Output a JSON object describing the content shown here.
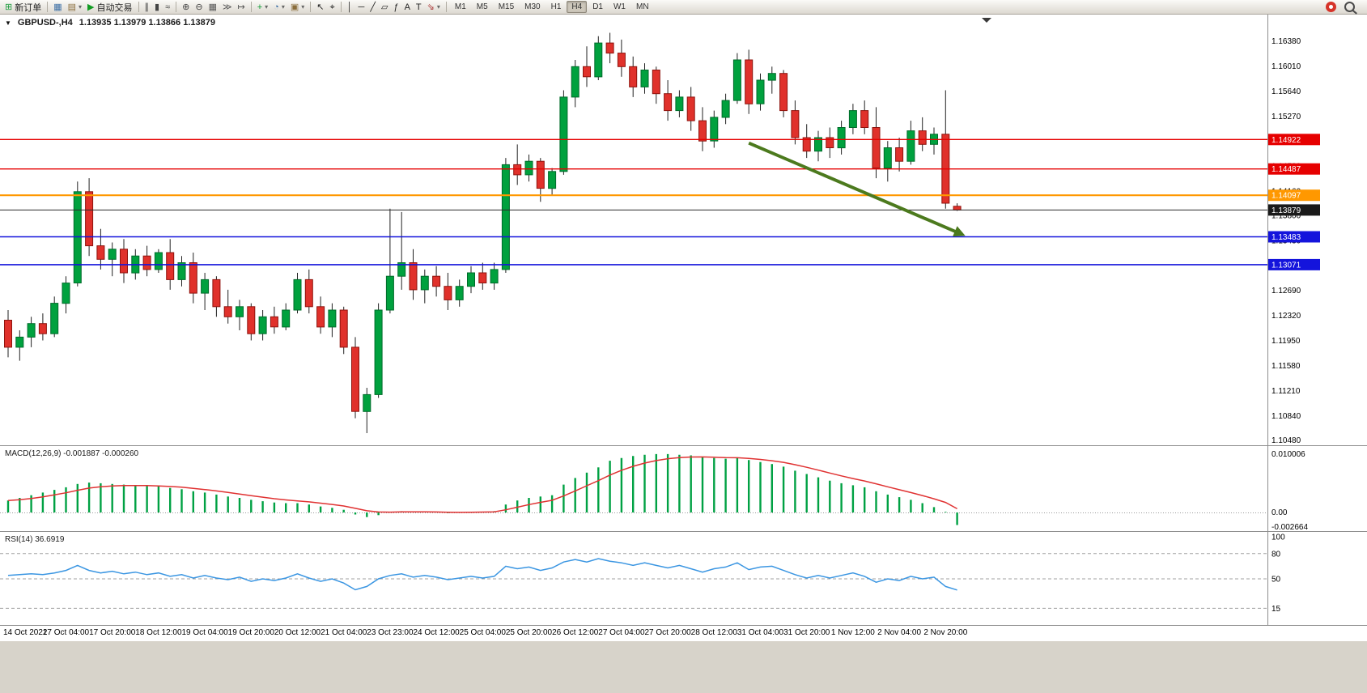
{
  "toolbar": {
    "active_timeframe": "H4",
    "items": [
      {
        "type": "button",
        "name": "new-order-button",
        "glyph": "⊞",
        "color": "#1f9d40",
        "label": "新订单"
      },
      {
        "type": "sep"
      },
      {
        "type": "button",
        "name": "chart-windows-button",
        "glyph": "▦",
        "color": "#3a6ea5"
      },
      {
        "type": "button",
        "name": "profiles-button",
        "glyph": "▤",
        "color": "#8a6d3b",
        "dropdown": true
      },
      {
        "type": "button",
        "name": "auto-trading-button",
        "glyph": "▶",
        "color": "#119c22",
        "label": "自动交易"
      },
      {
        "type": "sep"
      },
      {
        "type": "button",
        "name": "bars-chart-button",
        "glyph": "∥",
        "color": "#444"
      },
      {
        "type": "button",
        "name": "candles-chart-button",
        "glyph": "▮",
        "color": "#444"
      },
      {
        "type": "button",
        "name": "line-chart-button",
        "glyph": "≈",
        "color": "#444"
      },
      {
        "type": "sep"
      },
      {
        "type": "button",
        "name": "zoom-in-button",
        "glyph": "⊕",
        "color": "#444"
      },
      {
        "type": "button",
        "name": "zoom-out-button",
        "glyph": "⊖",
        "color": "#444"
      },
      {
        "type": "button",
        "name": "tile-windows-button",
        "glyph": "▦",
        "color": "#555"
      },
      {
        "type": "button",
        "name": "auto-scroll-button",
        "glyph": "≫",
        "color": "#555"
      },
      {
        "type": "button",
        "name": "chart-shift-button",
        "glyph": "↦",
        "color": "#555"
      },
      {
        "type": "sep"
      },
      {
        "type": "button",
        "name": "indicators-button",
        "glyph": "+",
        "color": "#0a9a30",
        "dropdown": true
      },
      {
        "type": "button",
        "name": "periods-button",
        "glyph": "◔",
        "color": "#3a6ea5",
        "dropdown": true
      },
      {
        "type": "button",
        "name": "templates-button",
        "glyph": "▣",
        "color": "#8a6d3b",
        "dropdown": true
      },
      {
        "type": "sep"
      },
      {
        "type": "button",
        "name": "cursor-button",
        "glyph": "↖",
        "color": "#222"
      },
      {
        "type": "button",
        "name": "crosshair-button",
        "glyph": "⌖",
        "color": "#222"
      },
      {
        "type": "sep"
      },
      {
        "type": "button",
        "name": "vertical-line-button",
        "glyph": "│",
        "color": "#222"
      },
      {
        "type": "button",
        "name": "horizontal-line-button",
        "glyph": "─",
        "color": "#222"
      },
      {
        "type": "button",
        "name": "trendline-button",
        "glyph": "╱",
        "color": "#222"
      },
      {
        "type": "button",
        "name": "equidistant-channel-button",
        "glyph": "▱",
        "color": "#222"
      },
      {
        "type": "button",
        "name": "fibonacci-button",
        "glyph": "ƒ",
        "color": "#222"
      },
      {
        "type": "button",
        "name": "text-button",
        "glyph": "A",
        "color": "#222"
      },
      {
        "type": "button",
        "name": "text-label-button",
        "glyph": "T",
        "color": "#222"
      },
      {
        "type": "button",
        "name": "arrows-button",
        "glyph": "⇘",
        "color": "#a33",
        "dropdown": true
      },
      {
        "type": "sep"
      },
      {
        "type": "tf",
        "label": "M1"
      },
      {
        "type": "tf",
        "label": "M5"
      },
      {
        "type": "tf",
        "label": "M15"
      },
      {
        "type": "tf",
        "label": "M30"
      },
      {
        "type": "tf",
        "label": "H1"
      },
      {
        "type": "tf",
        "label": "H4"
      },
      {
        "type": "tf",
        "label": "D1"
      },
      {
        "type": "tf",
        "label": "W1"
      },
      {
        "type": "tf",
        "label": "MN"
      }
    ],
    "right_items": [
      {
        "name": "community-icon"
      },
      {
        "name": "search-icon"
      }
    ]
  },
  "chart": {
    "title": "GBPUSD-,H4",
    "ohlc": "1.13935 1.13979 1.13866 1.13879",
    "macd_text": "MACD(12,26,9) -0.001887 -0.000260",
    "rsi_text": "RSI(14) 36.6919"
  },
  "chart_data": {
    "type": "candlestick",
    "symbol": "GBPUSD-",
    "period": "H4",
    "last_ohlc": {
      "open": 1.13935,
      "high": 1.13979,
      "low": 1.13866,
      "close": 1.13879
    },
    "colors": {
      "bull": "#00a13e",
      "bull_border": "#006b2a",
      "bear": "#e0312b",
      "bear_border": "#8e130d"
    },
    "price_axis": {
      "min": 1.104,
      "max": 1.1677,
      "labels": [
        1.1638,
        1.1601,
        1.1564,
        1.1527,
        1.149,
        1.1453,
        1.1416,
        1.138,
        1.1343,
        1.1306,
        1.1269,
        1.1232,
        1.1195,
        1.1158,
        1.1121,
        1.1084,
        1.1048
      ]
    },
    "candles": [
      [
        1.1225,
        1.124,
        1.117,
        1.1185
      ],
      [
        1.1185,
        1.121,
        1.1165,
        1.12
      ],
      [
        1.12,
        1.123,
        1.1185,
        1.122
      ],
      [
        1.122,
        1.1235,
        1.1195,
        1.1205
      ],
      [
        1.1205,
        1.126,
        1.12,
        1.125
      ],
      [
        1.125,
        1.129,
        1.1235,
        1.128
      ],
      [
        1.128,
        1.143,
        1.1275,
        1.1415
      ],
      [
        1.1415,
        1.1435,
        1.132,
        1.1335
      ],
      [
        1.1335,
        1.136,
        1.13,
        1.1315
      ],
      [
        1.1315,
        1.134,
        1.129,
        1.133
      ],
      [
        1.133,
        1.1345,
        1.128,
        1.1295
      ],
      [
        1.1295,
        1.133,
        1.1285,
        1.132
      ],
      [
        1.132,
        1.1335,
        1.129,
        1.13
      ],
      [
        1.13,
        1.133,
        1.1295,
        1.1325
      ],
      [
        1.1325,
        1.1345,
        1.127,
        1.1285
      ],
      [
        1.1285,
        1.132,
        1.1275,
        1.131
      ],
      [
        1.131,
        1.1325,
        1.125,
        1.1265
      ],
      [
        1.1265,
        1.1295,
        1.124,
        1.1285
      ],
      [
        1.1285,
        1.129,
        1.123,
        1.1245
      ],
      [
        1.1245,
        1.127,
        1.122,
        1.123
      ],
      [
        1.123,
        1.1255,
        1.121,
        1.1245
      ],
      [
        1.1245,
        1.125,
        1.1195,
        1.1205
      ],
      [
        1.1205,
        1.124,
        1.1195,
        1.123
      ],
      [
        1.123,
        1.1245,
        1.1205,
        1.1215
      ],
      [
        1.1215,
        1.125,
        1.121,
        1.124
      ],
      [
        1.124,
        1.1295,
        1.1235,
        1.1285
      ],
      [
        1.1285,
        1.13,
        1.1235,
        1.1245
      ],
      [
        1.1245,
        1.126,
        1.1205,
        1.1215
      ],
      [
        1.1215,
        1.125,
        1.12,
        1.124
      ],
      [
        1.124,
        1.1245,
        1.1175,
        1.1185
      ],
      [
        1.1185,
        1.12,
        1.108,
        1.109
      ],
      [
        1.109,
        1.1125,
        1.1058,
        1.1115
      ],
      [
        1.1115,
        1.125,
        1.111,
        1.124
      ],
      [
        1.124,
        1.139,
        1.1235,
        1.129
      ],
      [
        1.129,
        1.1385,
        1.127,
        1.131
      ],
      [
        1.131,
        1.133,
        1.1255,
        1.127
      ],
      [
        1.127,
        1.13,
        1.125,
        1.129
      ],
      [
        1.129,
        1.1305,
        1.126,
        1.1275
      ],
      [
        1.1275,
        1.1295,
        1.124,
        1.1255
      ],
      [
        1.1255,
        1.1285,
        1.1245,
        1.1275
      ],
      [
        1.1275,
        1.1305,
        1.1265,
        1.1295
      ],
      [
        1.1295,
        1.131,
        1.127,
        1.128
      ],
      [
        1.128,
        1.131,
        1.127,
        1.13
      ],
      [
        1.13,
        1.1465,
        1.1295,
        1.1455
      ],
      [
        1.1455,
        1.1485,
        1.1425,
        1.144
      ],
      [
        1.144,
        1.147,
        1.143,
        1.146
      ],
      [
        1.146,
        1.1465,
        1.14,
        1.142
      ],
      [
        1.142,
        1.145,
        1.141,
        1.1445
      ],
      [
        1.1445,
        1.1565,
        1.144,
        1.1555
      ],
      [
        1.1555,
        1.161,
        1.154,
        1.16
      ],
      [
        1.16,
        1.163,
        1.157,
        1.1585
      ],
      [
        1.1585,
        1.1645,
        1.158,
        1.1635
      ],
      [
        1.1635,
        1.165,
        1.1605,
        1.162
      ],
      [
        1.162,
        1.164,
        1.1585,
        1.16
      ],
      [
        1.16,
        1.1615,
        1.1555,
        1.157
      ],
      [
        1.157,
        1.1605,
        1.156,
        1.1595
      ],
      [
        1.1595,
        1.16,
        1.1545,
        1.156
      ],
      [
        1.156,
        1.158,
        1.152,
        1.1535
      ],
      [
        1.1535,
        1.1565,
        1.1525,
        1.1555
      ],
      [
        1.1555,
        1.157,
        1.1505,
        1.152
      ],
      [
        1.152,
        1.154,
        1.1475,
        1.149
      ],
      [
        1.149,
        1.1535,
        1.148,
        1.1525
      ],
      [
        1.1525,
        1.156,
        1.1515,
        1.155
      ],
      [
        1.155,
        1.162,
        1.1545,
        1.161
      ],
      [
        1.161,
        1.1625,
        1.153,
        1.1545
      ],
      [
        1.1545,
        1.159,
        1.1535,
        1.158
      ],
      [
        1.158,
        1.16,
        1.156,
        1.159
      ],
      [
        1.159,
        1.1595,
        1.1525,
        1.1535
      ],
      [
        1.1535,
        1.155,
        1.1485,
        1.1495
      ],
      [
        1.1495,
        1.1515,
        1.1465,
        1.1475
      ],
      [
        1.1475,
        1.1505,
        1.146,
        1.1495
      ],
      [
        1.1495,
        1.151,
        1.1465,
        1.148
      ],
      [
        1.148,
        1.152,
        1.147,
        1.151
      ],
      [
        1.151,
        1.1545,
        1.15,
        1.1535
      ],
      [
        1.1535,
        1.155,
        1.15,
        1.151
      ],
      [
        1.151,
        1.154,
        1.1435,
        1.145
      ],
      [
        1.145,
        1.149,
        1.143,
        1.148
      ],
      [
        1.148,
        1.1495,
        1.1445,
        1.146
      ],
      [
        1.146,
        1.152,
        1.1455,
        1.1505
      ],
      [
        1.1505,
        1.1525,
        1.1475,
        1.1485
      ],
      [
        1.1485,
        1.151,
        1.147,
        1.15
      ],
      [
        1.15,
        1.1565,
        1.139,
        1.1398
      ],
      [
        1.13935,
        1.13979,
        1.13866,
        1.13879
      ]
    ],
    "hlines": [
      {
        "p": 1.14922,
        "color": "#e60000",
        "w": 1.4
      },
      {
        "p": 1.14487,
        "color": "#e60000",
        "w": 1.4
      },
      {
        "p": 1.14097,
        "color": "#ff9800",
        "w": 2.2
      },
      {
        "p": 1.13879,
        "color": "#2a2a2a",
        "w": 1,
        "tag": "#1a1a1a",
        "current": true
      },
      {
        "p": 1.13483,
        "color": "#1414dc",
        "w": 1.6
      },
      {
        "p": 1.13071,
        "color": "#1414dc",
        "w": 1.6
      }
    ],
    "arrow": {
      "from": {
        "i": 64,
        "p": 1.1487
      },
      "to": {
        "i": 82,
        "p": 1.1355
      },
      "color": "#4c7a1e"
    },
    "time_axis": [
      {
        "i": 0,
        "t": "14 Oct 2022"
      },
      {
        "i": 5,
        "t": "17 Oct 04:00"
      },
      {
        "i": 9,
        "t": "17 Oct 20:00"
      },
      {
        "i": 13,
        "t": "18 Oct 12:00"
      },
      {
        "i": 17,
        "t": "19 Oct 04:00"
      },
      {
        "i": 21,
        "t": "19 Oct 20:00"
      },
      {
        "i": 25,
        "t": "20 Oct 12:00"
      },
      {
        "i": 29,
        "t": "21 Oct 04:00"
      },
      {
        "i": 33,
        "t": "23 Oct 23:00"
      },
      {
        "i": 37,
        "t": "24 Oct 12:00"
      },
      {
        "i": 41,
        "t": "25 Oct 04:00"
      },
      {
        "i": 45,
        "t": "25 Oct 20:00"
      },
      {
        "i": 49,
        "t": "26 Oct 12:00"
      },
      {
        "i": 53,
        "t": "27 Oct 04:00"
      },
      {
        "i": 57,
        "t": "27 Oct 20:00"
      },
      {
        "i": 61,
        "t": "28 Oct 12:00"
      },
      {
        "i": 65,
        "t": "31 Oct 04:00"
      },
      {
        "i": 69,
        "t": "31 Oct 20:00"
      },
      {
        "i": 73,
        "t": "1 Nov 12:00"
      },
      {
        "i": 77,
        "t": "2 Nov 04:00"
      },
      {
        "i": 81,
        "t": "2 Nov 20:00"
      }
    ],
    "macd": {
      "label": "MACD(12,26,9)",
      "current_macd": -0.001887,
      "current_signal": -0.00026,
      "line_color": "#e03232",
      "hist_color": "#00a143",
      "axis": [
        {
          "v": 0.010006,
          "t": "0.010006"
        },
        {
          "v": 0,
          "t": "0.00"
        },
        {
          "v": -0.002664,
          "t": "-0.002664"
        }
      ],
      "histogram": [
        0.0018,
        0.0022,
        0.0026,
        0.003,
        0.0034,
        0.0038,
        0.0043,
        0.0045,
        0.0044,
        0.0043,
        0.0042,
        0.0041,
        0.004,
        0.0039,
        0.0037,
        0.0035,
        0.0032,
        0.003,
        0.0027,
        0.0024,
        0.0022,
        0.0019,
        0.0017,
        0.0015,
        0.0014,
        0.0014,
        0.0012,
        0.0009,
        0.0007,
        0.0004,
        -0.0003,
        -0.0007,
        -0.0004,
        0.0,
        0.0002,
        0.0001,
        0.0001,
        0.0,
        -0.0001,
        0.0,
        0.0001,
        0.0001,
        0.0002,
        0.0012,
        0.0018,
        0.0022,
        0.0024,
        0.0026,
        0.0042,
        0.0052,
        0.006,
        0.0068,
        0.0078,
        0.0082,
        0.0085,
        0.0087,
        0.0088,
        0.0088,
        0.0087,
        0.0086,
        0.0084,
        0.0082,
        0.0081,
        0.0082,
        0.0079,
        0.0076,
        0.0073,
        0.0069,
        0.0063,
        0.0058,
        0.0053,
        0.0048,
        0.0044,
        0.0041,
        0.0038,
        0.0032,
        0.0027,
        0.0023,
        0.0019,
        0.0014,
        0.0008,
        0.0001,
        -0.001887
      ]
    },
    "rsi": {
      "label": "RSI(14)",
      "current": 36.6919,
      "line_color": "#3b96e2",
      "levels": [
        80,
        50,
        15
      ],
      "axis": [
        {
          "v": 100,
          "t": "100"
        },
        {
          "v": 80,
          "t": "80"
        },
        {
          "v": 50,
          "t": "50"
        },
        {
          "v": 15,
          "t": "15"
        }
      ],
      "values": [
        54,
        55,
        56,
        55,
        57,
        60,
        66,
        60,
        57,
        59,
        56,
        58,
        55,
        57,
        53,
        55,
        51,
        54,
        51,
        49,
        52,
        47,
        50,
        48,
        51,
        56,
        51,
        47,
        50,
        45,
        37,
        41,
        50,
        54,
        56,
        52,
        54,
        52,
        49,
        51,
        53,
        51,
        53,
        65,
        62,
        64,
        60,
        63,
        70,
        73,
        70,
        74,
        71,
        69,
        66,
        69,
        66,
        63,
        66,
        62,
        58,
        62,
        64,
        69,
        61,
        64,
        65,
        60,
        55,
        51,
        54,
        51,
        54,
        57,
        53,
        46,
        50,
        48,
        53,
        50,
        52,
        41,
        36.69
      ]
    }
  }
}
